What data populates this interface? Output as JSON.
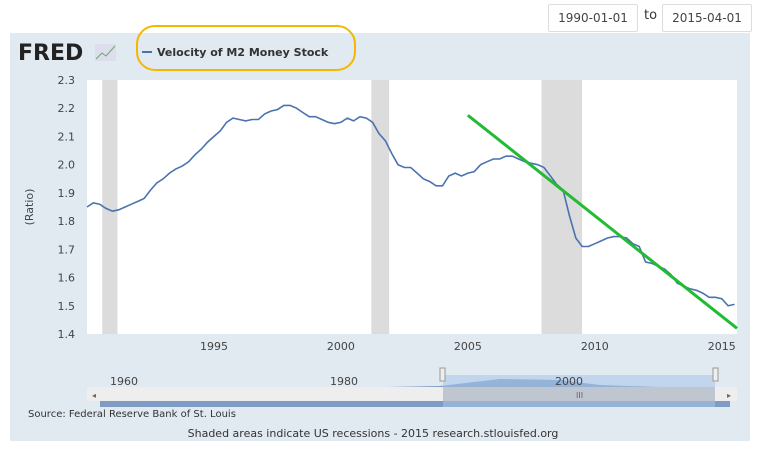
{
  "dates": {
    "start": "1990-01-01",
    "to_label": "to",
    "end": "2015-04-01"
  },
  "logo": "FRED",
  "source": "Source: Federal Reserve Bank of St. Louis",
  "footer": "Shaded areas indicate US recessions - 2015 research.stlouisfed.org",
  "navigator": {
    "labels": [
      "1960",
      "1980",
      "2000"
    ],
    "grip": "III"
  },
  "colors": {
    "line": "#4a72b0",
    "trend": "#22bb33",
    "highlight": "#f5b800",
    "recession": "#dcdcdc"
  },
  "chart_data": {
    "type": "line",
    "title": "Velocity of M2 Money Stock",
    "ylabel": "(Ratio)",
    "xlabel": "",
    "xlim": [
      1990,
      2015.6
    ],
    "ylim": [
      1.4,
      2.3
    ],
    "xticks": [
      1995,
      2000,
      2005,
      2010,
      2015
    ],
    "yticks": [
      "1.4",
      "1.5",
      "1.6",
      "1.7",
      "1.8",
      "1.9",
      "2.0",
      "2.1",
      "2.2",
      "2.3"
    ],
    "recessions": [
      [
        1990.6,
        1991.2
      ],
      [
        2001.2,
        2001.9
      ],
      [
        2007.9,
        2009.5
      ]
    ],
    "series": [
      {
        "name": "Velocity of M2 Money Stock",
        "start": 1990,
        "step": 0.25,
        "values": [
          1.85,
          1.865,
          1.86,
          1.845,
          1.835,
          1.84,
          1.85,
          1.86,
          1.87,
          1.88,
          1.91,
          1.935,
          1.95,
          1.97,
          1.985,
          1.995,
          2.01,
          2.035,
          2.055,
          2.08,
          2.1,
          2.12,
          2.15,
          2.165,
          2.16,
          2.155,
          2.16,
          2.16,
          2.18,
          2.19,
          2.195,
          2.21,
          2.21,
          2.2,
          2.185,
          2.17,
          2.17,
          2.16,
          2.15,
          2.145,
          2.15,
          2.165,
          2.155,
          2.17,
          2.165,
          2.15,
          2.11,
          2.085,
          2.04,
          2.0,
          1.99,
          1.99,
          1.97,
          1.95,
          1.94,
          1.925,
          1.925,
          1.96,
          1.97,
          1.96,
          1.97,
          1.975,
          2.0,
          2.01,
          2.02,
          2.02,
          2.03,
          2.03,
          2.02,
          2.01,
          2.005,
          2.0,
          1.99,
          1.96,
          1.93,
          1.91,
          1.82,
          1.74,
          1.71,
          1.71,
          1.72,
          1.73,
          1.74,
          1.745,
          1.745,
          1.74,
          1.72,
          1.71,
          1.655,
          1.65,
          1.64,
          1.63,
          1.61,
          1.58,
          1.57,
          1.56,
          1.555,
          1.545,
          1.53,
          1.53,
          1.525,
          1.5,
          1.505
        ]
      }
    ],
    "annotation": {
      "type": "trend-line",
      "from": [
        2005,
        2.175
      ],
      "to": [
        2015.6,
        1.42
      ]
    }
  }
}
